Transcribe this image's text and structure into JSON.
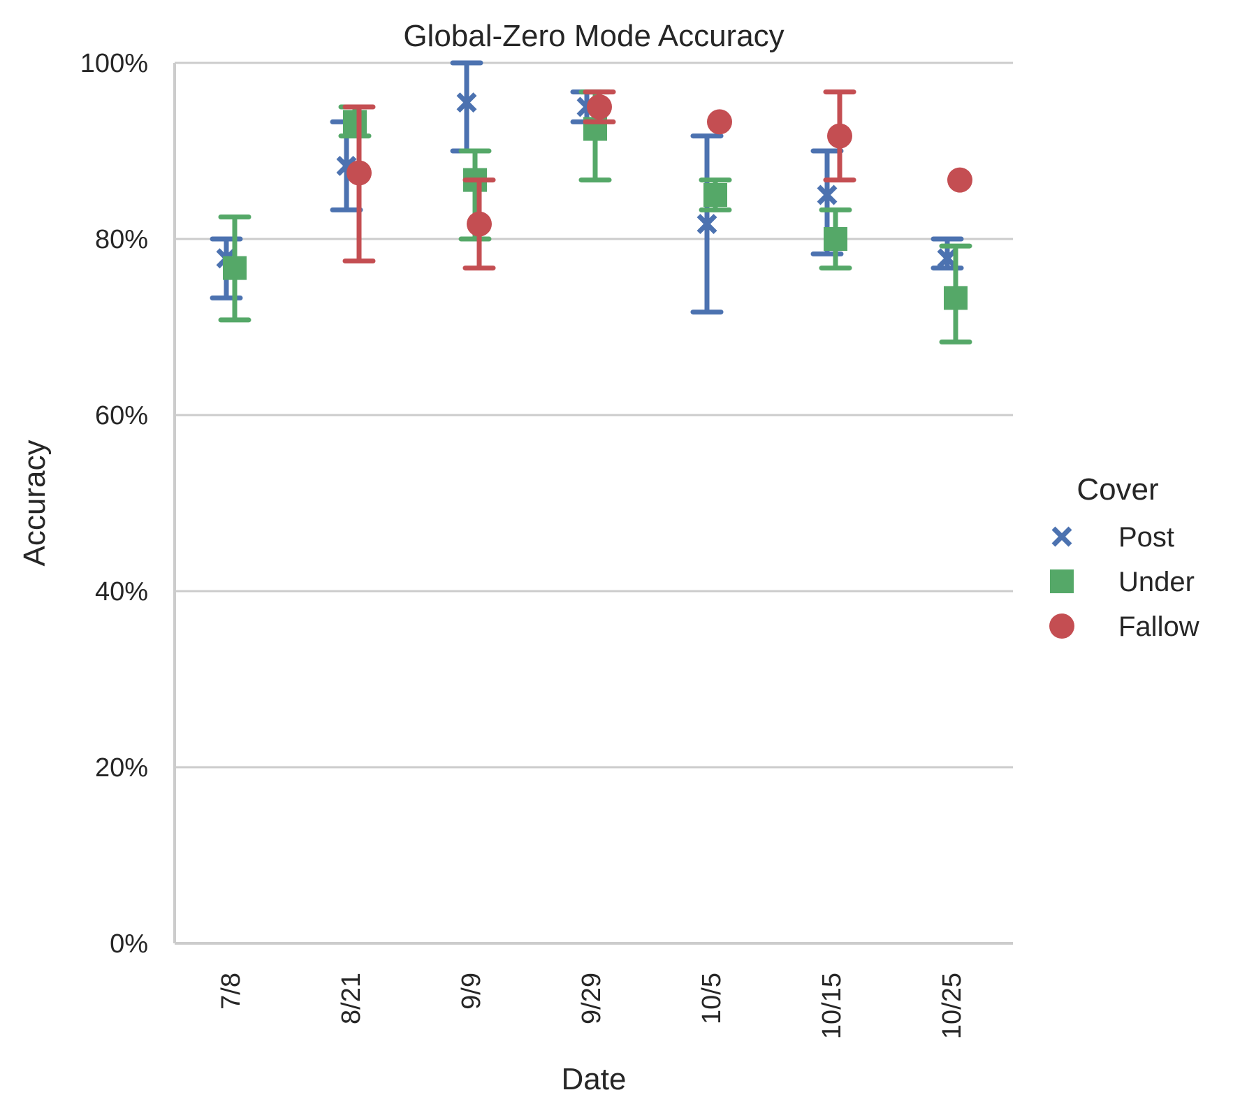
{
  "chart_data": {
    "type": "scatter",
    "title": "Global-Zero Mode Accuracy",
    "xlabel": "Date",
    "ylabel": "Accuracy",
    "categories": [
      "7/8",
      "8/21",
      "9/9",
      "9/29",
      "10/5",
      "10/15",
      "10/25"
    ],
    "ylim": [
      0,
      1
    ],
    "yticks": [
      0,
      0.2,
      0.4,
      0.6,
      0.8,
      1.0
    ],
    "ytick_labels": [
      "0%",
      "20%",
      "40%",
      "60%",
      "80%",
      "100%"
    ],
    "grid": "horizontal",
    "legend": {
      "title": "Cover",
      "placement": "right"
    },
    "series": [
      {
        "name": "Post",
        "marker": "x",
        "color": "#4c72b0",
        "values": [
          0.778,
          0.883,
          0.955,
          0.95,
          0.817,
          0.85,
          0.778
        ],
        "err_low": [
          0.733,
          0.833,
          0.9,
          0.933,
          0.717,
          0.783,
          0.767
        ],
        "err_high": [
          0.8,
          0.933,
          1.0,
          0.967,
          0.917,
          0.9,
          0.8
        ]
      },
      {
        "name": "Under",
        "marker": "s",
        "color": "#55a868",
        "values": [
          0.767,
          0.933,
          0.867,
          0.925,
          0.85,
          0.8,
          0.733
        ],
        "err_low": [
          0.708,
          0.917,
          0.8,
          0.867,
          0.833,
          0.767,
          0.683
        ],
        "err_high": [
          0.825,
          0.95,
          0.9,
          0.967,
          0.867,
          0.833,
          0.792
        ]
      },
      {
        "name": "Fallow",
        "marker": "o",
        "color": "#c44e52",
        "values": [
          null,
          0.875,
          0.817,
          0.95,
          0.933,
          0.917,
          0.867
        ],
        "err_low": [
          null,
          0.775,
          0.767,
          0.933,
          0.933,
          0.867,
          0.867
        ],
        "err_high": [
          null,
          0.95,
          0.867,
          0.967,
          0.933,
          0.967,
          0.867
        ]
      }
    ]
  }
}
